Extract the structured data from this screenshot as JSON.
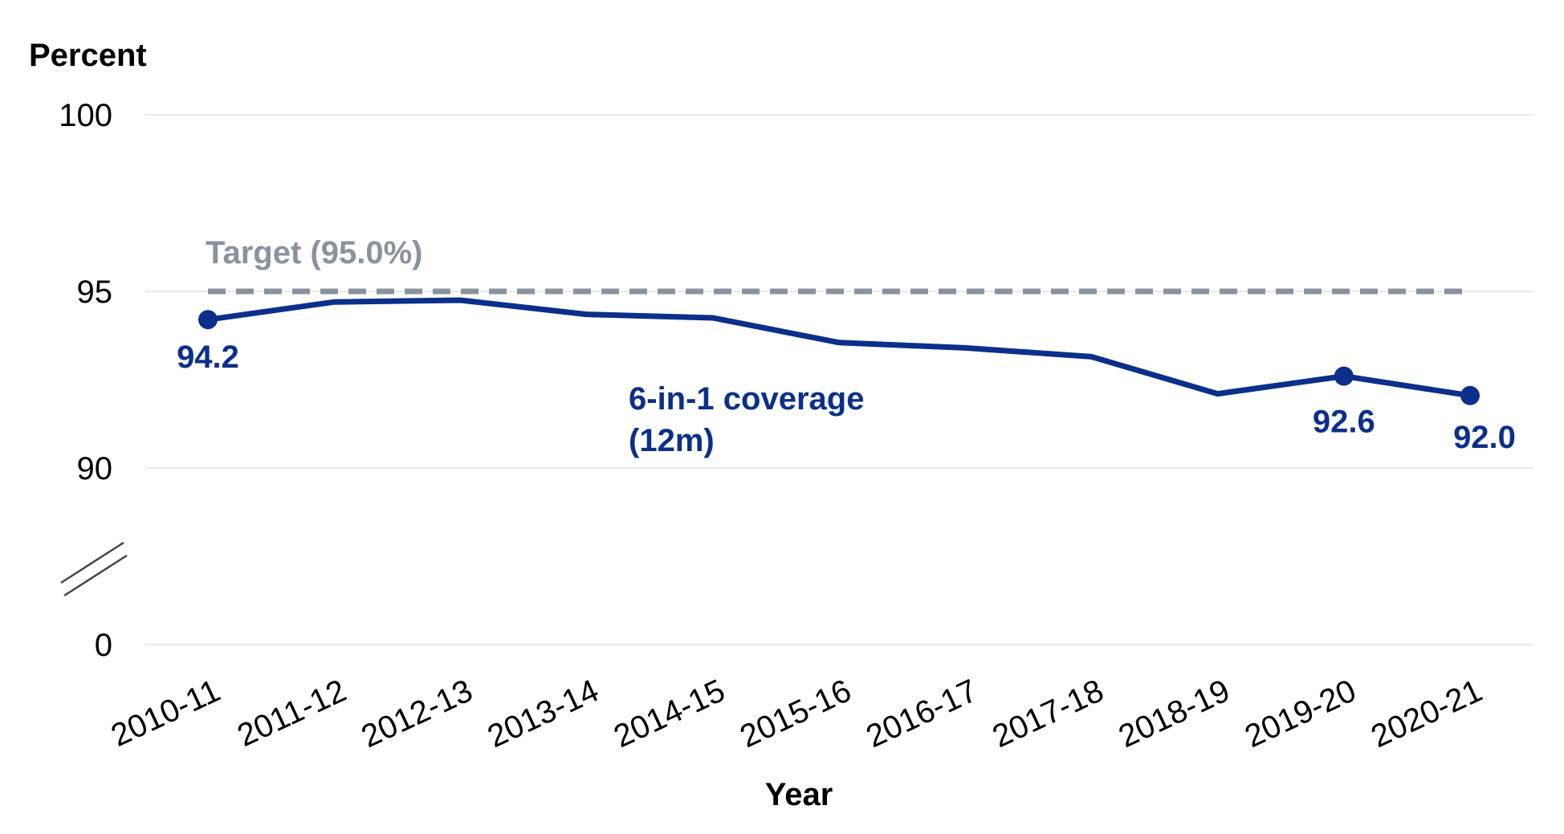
{
  "chart_data": {
    "type": "line",
    "ylabel": "Percent",
    "xlabel": "Year",
    "y_ticks": [
      "0",
      "90",
      "95",
      "100"
    ],
    "y_axis_break": {
      "from": 0,
      "to": 90
    },
    "ylim": [
      90,
      100
    ],
    "grid": true,
    "categories": [
      "2010-11",
      "2011-12",
      "2012-13",
      "2013-14",
      "2014-15",
      "2015-16",
      "2016-17",
      "2017-18",
      "2018-19",
      "2019-20",
      "2020-21"
    ],
    "series": [
      {
        "name": "6-in-1 coverage (12m)",
        "label_lines": [
          "6-in-1 coverage",
          "(12m)"
        ],
        "color": "#0b2f8a",
        "values": [
          94.2,
          94.7,
          94.75,
          94.35,
          94.25,
          93.55,
          93.4,
          93.15,
          92.1,
          92.6,
          92.05
        ],
        "data_labels": [
          {
            "index": 0,
            "text": "94.2"
          },
          {
            "index": 9,
            "text": "92.6"
          },
          {
            "index": 10,
            "text": "92.0"
          }
        ]
      }
    ],
    "target": {
      "label": "Target (95.0%)",
      "value": 95.0,
      "color": "#8a939d"
    }
  }
}
